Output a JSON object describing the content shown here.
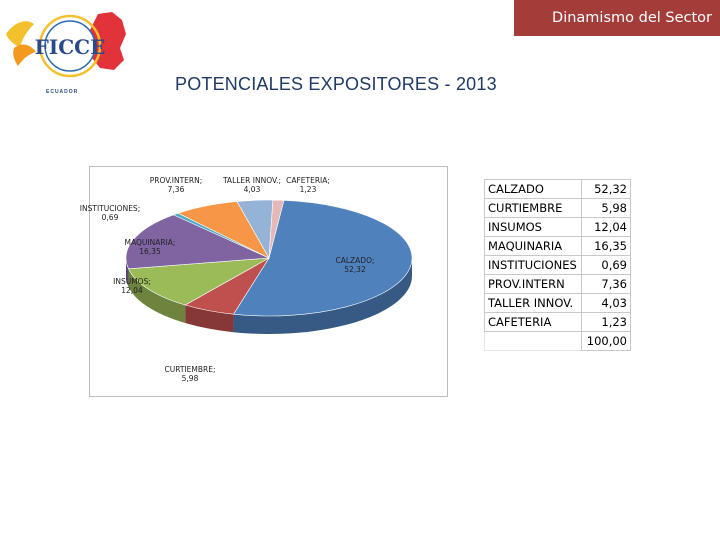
{
  "header": {
    "badge_text": "Dinamismo del Sector",
    "logo_text": "FICCE",
    "logo_country": "ECUADOR"
  },
  "page": {
    "title": "POTENCIALES EXPOSITORES - 2013"
  },
  "chart_data": {
    "type": "pie",
    "style": "3d",
    "categories": [
      "CALZADO",
      "CURTIEMBRE",
      "INSUMOS",
      "MAQUINARIA",
      "INSTITUCIONES",
      "PROV.INTERN",
      "TALLER INNOV.",
      "CAFETERIA"
    ],
    "values": [
      52.32,
      5.98,
      12.04,
      16.35,
      0.69,
      7.36,
      4.03,
      1.23
    ],
    "labels": [
      "CALZADO;\n52,32",
      "CURTIEMBRE;\n5,98",
      "INSUMOS;\n12,04",
      "MAQUINARIA;\n16,35",
      "INSTITUCIONES;\n0,69",
      "PROV.INTERN;\n7,36",
      "TALLER INNOV.;\n4,03",
      "CAFETERIA;\n1,23"
    ],
    "colors": [
      "#4f81bd",
      "#c0504d",
      "#9bbb59",
      "#8064a2",
      "#4bacc6",
      "#f79646",
      "#95b3d7",
      "#e6b9b8"
    ],
    "legend": "none"
  },
  "table": {
    "rows": [
      {
        "category": "CALZADO",
        "value": "52,32"
      },
      {
        "category": "CURTIEMBRE",
        "value": "5,98"
      },
      {
        "category": "INSUMOS",
        "value": "12,04"
      },
      {
        "category": "MAQUINARIA",
        "value": "16,35"
      },
      {
        "category": "INSTITUCIONES",
        "value": "0,69"
      },
      {
        "category": "PROV.INTERN",
        "value": "7,36"
      },
      {
        "category": "TALLER INNOV.",
        "value": "4,03"
      },
      {
        "category": "CAFETERIA",
        "value": "1,23"
      }
    ],
    "total": "100,00"
  }
}
